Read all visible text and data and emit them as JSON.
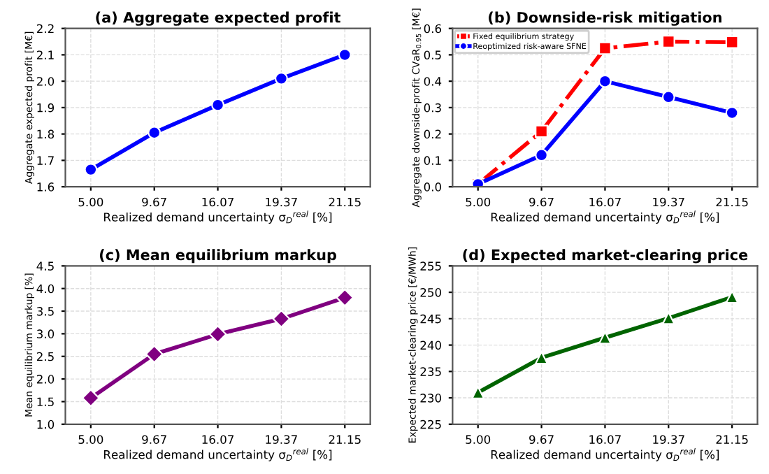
{
  "chart_data": [
    {
      "type": "line",
      "title": "(a) Aggregate expected profit",
      "xlabel": "Realized demand uncertainty σ$_{D}$$^{real}$ [%]",
      "ylabel": "Aggregate expected profit [M€]",
      "categories": [
        "5.00",
        "9.67",
        "16.07",
        "19.37",
        "21.15"
      ],
      "ylim": [
        1.6,
        2.2
      ],
      "yticks": [
        1.6,
        1.7,
        1.8,
        1.9,
        {
          "value": 2,
          "label": "2.0"
        },
        2.1,
        2.2
      ],
      "grid": true,
      "legend": false,
      "series": [
        {
          "color": "#0000ff",
          "marker": "circle",
          "line_style": "solid",
          "values": [
            1.665,
            1.805,
            1.91,
            2.01,
            2.1
          ]
        }
      ]
    },
    {
      "type": "line",
      "title": "(b) Downside-risk mitigation",
      "xlabel": "Realized demand uncertainty σ$_{D}$$^{real}$ [%]",
      "ylabel": "Aggregate downside-profit CVaR$_{0.95}$ [M€]",
      "categories": [
        "5.00",
        "9.67",
        "16.07",
        "19.37",
        "21.15"
      ],
      "ylim": [
        0.0,
        0.6
      ],
      "yticks": [
        {
          "value": 0,
          "label": "0.0"
        },
        0.1,
        0.2,
        0.3,
        0.4,
        0.5,
        0.6
      ],
      "grid": true,
      "legend": "top left",
      "series": [
        {
          "name": "Fixed equilibrium strategy",
          "color": "#ff0000",
          "marker": "square",
          "line_style": "dashdot",
          "values": [
            0.01,
            0.21,
            0.525,
            0.55,
            0.548
          ]
        },
        {
          "name": "Reoptimized risk-aware SFNE",
          "color": "#0000ff",
          "marker": "circle",
          "line_style": "solid",
          "values": [
            0.01,
            0.12,
            0.4,
            0.34,
            0.28
          ]
        }
      ]
    },
    {
      "type": "line",
      "title": "(c) Mean equilibrium markup",
      "xlabel": "Realized demand uncertainty σ$_{D}$$^{real}$ [%]",
      "ylabel": "Mean equilibrium markup [%]",
      "categories": [
        "5.00",
        "9.67",
        "16.07",
        "19.37",
        "21.15"
      ],
      "ylim": [
        1.0,
        4.5
      ],
      "yticks": [
        {
          "value": 1,
          "label": "1.0"
        },
        1.5,
        {
          "value": 2,
          "label": "2.0"
        },
        2.5,
        {
          "value": 3,
          "label": "3.0"
        },
        3.5,
        {
          "value": 4,
          "label": "4.0"
        },
        4.5
      ],
      "grid": true,
      "legend": false,
      "series": [
        {
          "color": "#800080",
          "marker": "diamond",
          "line_style": "solid",
          "values": [
            1.58,
            2.55,
            2.99,
            3.33,
            3.8
          ]
        }
      ]
    },
    {
      "type": "line",
      "title": "(d) Expected market-clearing price",
      "xlabel": "Realized demand uncertainty σ$_{D}$$^{real}$ [%]",
      "ylabel": "Expected market-clearing price [€/MWh]",
      "categories": [
        "5.00",
        "9.67",
        "16.07",
        "19.37",
        "21.15"
      ],
      "ylim": [
        225,
        255
      ],
      "yticks": [
        225,
        230,
        235,
        240,
        245,
        250,
        255
      ],
      "grid": true,
      "legend": false,
      "series": [
        {
          "color": "#006400",
          "marker": "triangle",
          "line_style": "solid",
          "values": [
            231.0,
            237.6,
            241.4,
            245.1,
            249.1
          ]
        }
      ]
    }
  ]
}
